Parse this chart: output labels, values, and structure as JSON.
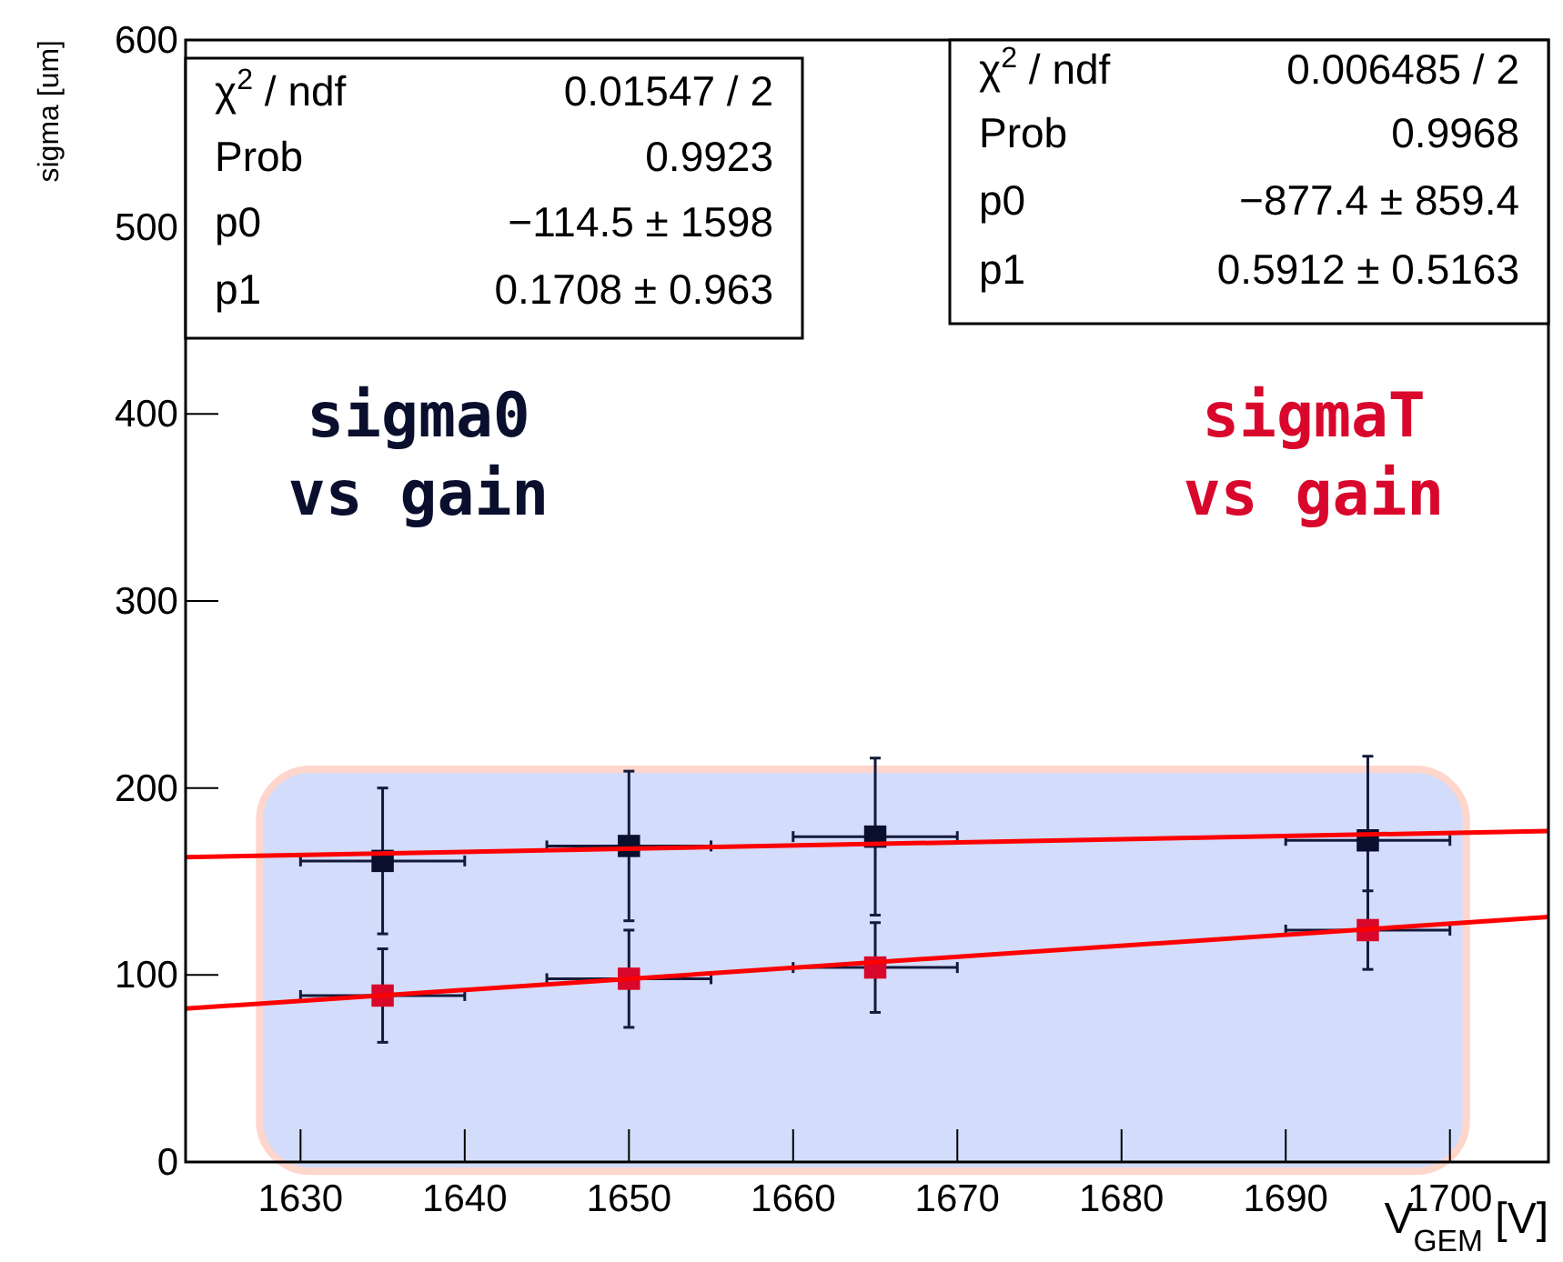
{
  "chart_data": {
    "type": "scatter",
    "xlabel": "V$_{GEM}$ [V]",
    "ylabel": "sigma [um]",
    "xlim": [
      1623,
      1706
    ],
    "xticks": [
      1630,
      1640,
      1650,
      1660,
      1670,
      1680,
      1690,
      1700
    ],
    "ylim": [
      0,
      600
    ],
    "yticks": [
      0,
      100,
      200,
      300,
      400,
      500,
      600
    ],
    "grid": false,
    "series": [
      {
        "name": "sigma0 vs gain",
        "color": "#0a0f2e",
        "marker": "square",
        "x": [
          1635,
          1650,
          1665,
          1695
        ],
        "values": [
          161,
          169,
          174,
          172
        ],
        "errors": [
          39,
          40,
          42,
          45
        ],
        "xerrors": [
          5,
          5,
          5,
          5
        ]
      },
      {
        "name": "sigmaT vs gain",
        "color": "#d9072b",
        "marker": "square",
        "x": [
          1635,
          1650,
          1665,
          1695
        ],
        "values": [
          89,
          98,
          104,
          124
        ],
        "errors": [
          25,
          26,
          24,
          21
        ],
        "xerrors": [
          5,
          5,
          5,
          5
        ]
      },
      {
        "type": "line",
        "color": "#ff0000",
        "x": [
          1623,
          1706
        ],
        "values": [
          163,
          177
        ]
      },
      {
        "type": "line",
        "color": "#ff0000",
        "x": [
          1623,
          1706
        ],
        "values": [
          82,
          131
        ]
      }
    ],
    "annotations": [
      "χ$^{2}$ / ndf",
      "0.01547 / 2",
      "Prob",
      "0.9923",
      "p0",
      "−114.5 ±  1598",
      "p1",
      "0.1708 ± 0.963",
      "χ$^{2}$ / ndf",
      "0.006485 / 2",
      "Prob",
      "0.9968",
      "p0",
      "−877.4 ± 859.4",
      "p1",
      "0.5912 ± 0.5163"
    ]
  }
}
